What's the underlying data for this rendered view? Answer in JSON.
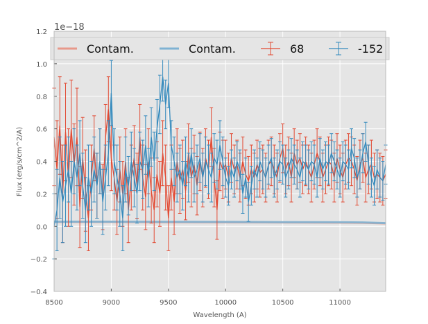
{
  "chart_data": {
    "type": "line",
    "title": "",
    "xlabel": "Wavelength (A)",
    "ylabel": "Flux (erg/s/cm^2/A)",
    "xlim": [
      8500,
      11400
    ],
    "ylim": [
      -0.4,
      1.2
    ],
    "y_offset_label": "1e−18",
    "x_ticks": [
      8500,
      9000,
      9500,
      10000,
      10500,
      11000
    ],
    "x_tick_labels": [
      "8500",
      "9000",
      "9500",
      "10000",
      "10500",
      "11000"
    ],
    "y_ticks": [
      -0.4,
      -0.2,
      0.0,
      0.2,
      0.4,
      0.6,
      0.8,
      1.0,
      1.2
    ],
    "y_tick_labels": [
      "−0.4",
      "−0.2",
      "0.0",
      "0.2",
      "0.4",
      "0.6",
      "0.8",
      "1.0",
      "1.2"
    ],
    "grid": true,
    "legend": {
      "position": "top",
      "entries": [
        {
          "label": "Contam.",
          "style": "line",
          "color": "#E8998A"
        },
        {
          "label": "Contam.",
          "style": "line",
          "color": "#7FB2D3"
        },
        {
          "label": "68",
          "style": "errorbar",
          "color": "#E24A33"
        },
        {
          "label": "-152",
          "style": "errorbar",
          "color": "#348ABD"
        }
      ]
    },
    "series": [
      {
        "name": "Contam.",
        "kind": "contam",
        "color": "#E8998A",
        "x": [
          8500,
          9000,
          9500,
          10000,
          10500,
          11000,
          11200,
          11400
        ],
        "y": [
          0.027,
          0.027,
          0.026,
          0.025,
          0.024,
          0.023,
          0.022,
          0.018
        ]
      },
      {
        "name": "Contam.",
        "kind": "contam",
        "color": "#7FB2D3",
        "x": [
          8500,
          9000,
          9500,
          10000,
          10500,
          11000,
          11200,
          11400
        ],
        "y": [
          0.029,
          0.029,
          0.028,
          0.027,
          0.026,
          0.025,
          0.024,
          0.02
        ]
      },
      {
        "name": "68",
        "kind": "errorbar",
        "color": "#E24A33",
        "x": [
          8500,
          8525,
          8550,
          8575,
          8600,
          8625,
          8650,
          8675,
          8700,
          8725,
          8750,
          8775,
          8800,
          8825,
          8850,
          8875,
          8900,
          8925,
          8950,
          8975,
          9000,
          9025,
          9050,
          9075,
          9100,
          9125,
          9150,
          9175,
          9200,
          9225,
          9250,
          9275,
          9300,
          9325,
          9350,
          9375,
          9400,
          9425,
          9450,
          9475,
          9500,
          9525,
          9550,
          9575,
          9600,
          9625,
          9650,
          9675,
          9700,
          9725,
          9750,
          9775,
          9800,
          9825,
          9850,
          9875,
          9900,
          9925,
          9950,
          9975,
          10000,
          10025,
          10050,
          10075,
          10100,
          10125,
          10150,
          10175,
          10200,
          10225,
          10250,
          10275,
          10300,
          10325,
          10350,
          10375,
          10400,
          10425,
          10450,
          10475,
          10500,
          10525,
          10550,
          10575,
          10600,
          10625,
          10650,
          10675,
          10700,
          10725,
          10750,
          10775,
          10800,
          10825,
          10850,
          10875,
          10900,
          10925,
          10950,
          10975,
          11000,
          11025,
          11050,
          11075,
          11100,
          11125,
          11150,
          11175,
          11200,
          11225,
          11250,
          11275,
          11300,
          11325,
          11350,
          11375,
          11400
        ],
        "y": [
          0.55,
          0.35,
          0.62,
          0.2,
          0.58,
          0.3,
          0.6,
          0.38,
          0.55,
          0.12,
          0.42,
          0.22,
          0.05,
          0.3,
          0.48,
          0.25,
          0.4,
          0.18,
          0.55,
          0.72,
          0.42,
          0.3,
          0.15,
          0.35,
          0.2,
          0.4,
          0.1,
          0.3,
          0.42,
          0.25,
          0.55,
          0.3,
          0.18,
          0.4,
          0.22,
          0.1,
          0.32,
          0.2,
          0.45,
          0.3,
          0.05,
          0.3,
          0.15,
          0.4,
          0.28,
          0.35,
          0.22,
          0.45,
          0.3,
          0.38,
          0.25,
          0.4,
          0.3,
          0.42,
          0.35,
          0.55,
          0.3,
          0.1,
          0.4,
          0.35,
          0.38,
          0.3,
          0.42,
          0.35,
          0.38,
          0.3,
          0.4,
          0.32,
          0.28,
          0.35,
          0.3,
          0.38,
          0.33,
          0.35,
          0.3,
          0.38,
          0.4,
          0.35,
          0.3,
          0.42,
          0.48,
          0.35,
          0.4,
          0.3,
          0.45,
          0.38,
          0.42,
          0.35,
          0.4,
          0.35,
          0.3,
          0.38,
          0.45,
          0.4,
          0.3,
          0.35,
          0.4,
          0.38,
          0.3,
          0.42,
          0.35,
          0.3,
          0.38,
          0.42,
          0.4,
          0.35,
          0.28,
          0.38,
          0.42,
          0.3,
          0.35,
          0.38,
          0.3,
          0.32,
          0.3,
          0.28,
          0.32
        ],
        "err": [
          0.3,
          0.3,
          0.3,
          0.3,
          0.3,
          0.3,
          0.3,
          0.25,
          0.3,
          0.25,
          0.25,
          0.25,
          0.2,
          0.2,
          0.2,
          0.2,
          0.2,
          0.2,
          0.2,
          0.2,
          0.2,
          0.2,
          0.2,
          0.2,
          0.2,
          0.2,
          0.2,
          0.2,
          0.2,
          0.2,
          0.2,
          0.2,
          0.2,
          0.2,
          0.2,
          0.2,
          0.2,
          0.2,
          0.2,
          0.2,
          0.2,
          0.2,
          0.2,
          0.2,
          0.2,
          0.18,
          0.18,
          0.18,
          0.18,
          0.18,
          0.18,
          0.18,
          0.18,
          0.18,
          0.18,
          0.18,
          0.18,
          0.18,
          0.18,
          0.18,
          0.15,
          0.15,
          0.15,
          0.15,
          0.15,
          0.15,
          0.15,
          0.15,
          0.15,
          0.15,
          0.15,
          0.15,
          0.15,
          0.15,
          0.15,
          0.15,
          0.15,
          0.15,
          0.15,
          0.15,
          0.15,
          0.15,
          0.15,
          0.15,
          0.15,
          0.15,
          0.15,
          0.15,
          0.15,
          0.15,
          0.15,
          0.15,
          0.15,
          0.15,
          0.15,
          0.15,
          0.15,
          0.15,
          0.15,
          0.15,
          0.15,
          0.15,
          0.15,
          0.15,
          0.15,
          0.15,
          0.15,
          0.15,
          0.15,
          0.15,
          0.15,
          0.15,
          0.15,
          0.15,
          0.15,
          0.15,
          0.15
        ]
      },
      {
        "name": "-152",
        "kind": "errorbar",
        "color": "#348ABD",
        "x": [
          8500,
          8525,
          8550,
          8575,
          8600,
          8625,
          8650,
          8675,
          8700,
          8725,
          8750,
          8775,
          8800,
          8825,
          8850,
          8875,
          8900,
          8925,
          8950,
          8975,
          9000,
          9025,
          9050,
          9075,
          9100,
          9125,
          9150,
          9175,
          9200,
          9225,
          9250,
          9275,
          9300,
          9325,
          9350,
          9375,
          9400,
          9425,
          9450,
          9475,
          9500,
          9525,
          9550,
          9575,
          9600,
          9625,
          9650,
          9675,
          9700,
          9725,
          9750,
          9775,
          9800,
          9825,
          9850,
          9875,
          9900,
          9925,
          9950,
          9975,
          10000,
          10025,
          10050,
          10075,
          10100,
          10125,
          10150,
          10175,
          10200,
          10225,
          10250,
          10275,
          10300,
          10325,
          10350,
          10375,
          10400,
          10425,
          10450,
          10475,
          10500,
          10525,
          10550,
          10575,
          10600,
          10625,
          10650,
          10675,
          10700,
          10725,
          10750,
          10775,
          10800,
          10825,
          10850,
          10875,
          10900,
          10925,
          10950,
          10975,
          11000,
          11025,
          11050,
          11075,
          11100,
          11125,
          11150,
          11175,
          11200,
          11225,
          11250,
          11275,
          11300,
          11325,
          11350,
          11375,
          11400
        ],
        "y": [
          0.0,
          0.1,
          0.3,
          0.15,
          0.25,
          0.35,
          0.2,
          0.4,
          0.3,
          0.45,
          0.25,
          0.1,
          0.3,
          0.2,
          0.35,
          0.25,
          0.4,
          0.15,
          0.3,
          0.45,
          0.82,
          0.4,
          0.3,
          0.2,
          0.05,
          0.35,
          0.25,
          0.4,
          0.3,
          0.2,
          0.4,
          0.35,
          0.5,
          0.3,
          0.55,
          0.4,
          0.6,
          0.75,
          0.92,
          0.75,
          0.88,
          0.5,
          0.4,
          0.3,
          0.35,
          0.25,
          0.4,
          0.3,
          0.45,
          0.3,
          0.35,
          0.42,
          0.3,
          0.4,
          0.35,
          0.3,
          0.42,
          0.38,
          0.5,
          0.4,
          0.3,
          0.25,
          0.35,
          0.3,
          0.4,
          0.35,
          0.2,
          0.3,
          0.15,
          0.25,
          0.35,
          0.3,
          0.4,
          0.35,
          0.3,
          0.38,
          0.42,
          0.3,
          0.35,
          0.4,
          0.38,
          0.3,
          0.35,
          0.42,
          0.38,
          0.35,
          0.3,
          0.4,
          0.38,
          0.35,
          0.4,
          0.38,
          0.3,
          0.42,
          0.35,
          0.4,
          0.38,
          0.45,
          0.4,
          0.35,
          0.3,
          0.4,
          0.38,
          0.35,
          0.48,
          0.42,
          0.3,
          0.35,
          0.45,
          0.52,
          0.38,
          0.3,
          0.25,
          0.35,
          0.3,
          0.28,
          0.38
        ],
        "err": [
          0.2,
          0.25,
          0.25,
          0.25,
          0.25,
          0.2,
          0.2,
          0.2,
          0.2,
          0.2,
          0.2,
          0.2,
          0.2,
          0.2,
          0.2,
          0.2,
          0.2,
          0.2,
          0.2,
          0.2,
          0.2,
          0.2,
          0.2,
          0.2,
          0.2,
          0.2,
          0.18,
          0.18,
          0.18,
          0.18,
          0.18,
          0.18,
          0.18,
          0.18,
          0.18,
          0.18,
          0.18,
          0.18,
          0.15,
          0.15,
          0.15,
          0.15,
          0.15,
          0.15,
          0.15,
          0.15,
          0.15,
          0.15,
          0.15,
          0.15,
          0.15,
          0.15,
          0.15,
          0.15,
          0.15,
          0.15,
          0.15,
          0.15,
          0.15,
          0.15,
          0.12,
          0.12,
          0.12,
          0.12,
          0.12,
          0.12,
          0.12,
          0.12,
          0.12,
          0.12,
          0.12,
          0.12,
          0.12,
          0.12,
          0.12,
          0.12,
          0.12,
          0.12,
          0.12,
          0.12,
          0.12,
          0.12,
          0.12,
          0.12,
          0.12,
          0.12,
          0.12,
          0.12,
          0.12,
          0.12,
          0.12,
          0.12,
          0.12,
          0.12,
          0.12,
          0.12,
          0.12,
          0.12,
          0.12,
          0.12,
          0.12,
          0.12,
          0.12,
          0.12,
          0.12,
          0.12,
          0.12,
          0.12,
          0.12,
          0.12,
          0.12,
          0.12,
          0.12,
          0.12,
          0.12,
          0.12,
          0.12
        ]
      }
    ]
  }
}
